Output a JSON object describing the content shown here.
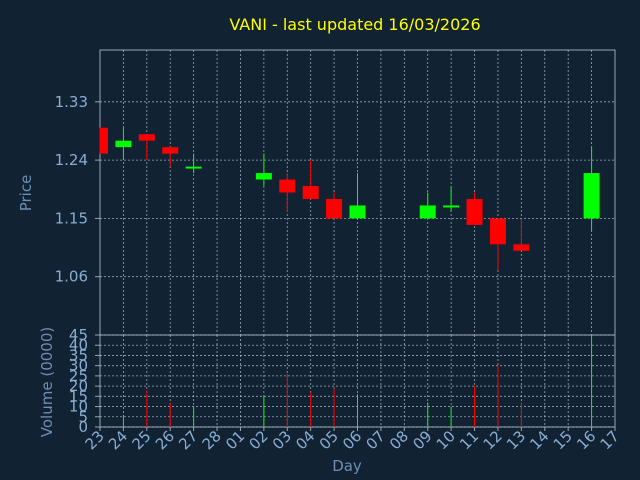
{
  "chart_data": [
    {
      "type": "candlestick",
      "title": "VANI - last updated 16/03/2026",
      "ylabel": "Price",
      "ylim": [
        0.97,
        1.41
      ],
      "y_ticks": [
        "1.06",
        "1.15",
        "1.24",
        "1.33"
      ],
      "y_tick_values": [
        1.06,
        1.15,
        1.24,
        1.33
      ],
      "grid": true,
      "colors": {
        "up": "#00ff00",
        "down": "#ff0000",
        "background": "#112233",
        "title": "#ffff00",
        "label": "#6e8fb2"
      },
      "candles": [
        {
          "day": "23",
          "open": 1.29,
          "high": 1.29,
          "low": 1.25,
          "close": 1.25
        },
        {
          "day": "24",
          "open": 1.26,
          "high": 1.29,
          "low": 1.24,
          "close": 1.27
        },
        {
          "day": "25",
          "open": 1.28,
          "high": 1.28,
          "low": 1.24,
          "close": 1.27
        },
        {
          "day": "26",
          "open": 1.26,
          "high": 1.26,
          "low": 1.23,
          "close": 1.25
        },
        {
          "day": "27",
          "open": 1.23,
          "high": 1.25,
          "low": 1.22,
          "close": 1.23
        },
        {
          "day": "02",
          "open": 1.21,
          "high": 1.25,
          "low": 1.2,
          "close": 1.22
        },
        {
          "day": "03",
          "open": 1.21,
          "high": 1.22,
          "low": 1.16,
          "close": 1.19
        },
        {
          "day": "04",
          "open": 1.2,
          "high": 1.24,
          "low": 1.18,
          "close": 1.18
        },
        {
          "day": "05",
          "open": 1.18,
          "high": 1.19,
          "low": 1.15,
          "close": 1.15
        },
        {
          "day": "06",
          "open": 1.15,
          "high": 1.22,
          "low": 1.15,
          "close": 1.17
        },
        {
          "day": "09",
          "open": 1.15,
          "high": 1.19,
          "low": 1.15,
          "close": 1.17
        },
        {
          "day": "10",
          "open": 1.17,
          "high": 1.2,
          "low": 1.16,
          "close": 1.17
        },
        {
          "day": "11",
          "open": 1.18,
          "high": 1.19,
          "low": 1.14,
          "close": 1.14
        },
        {
          "day": "12",
          "open": 1.15,
          "high": 1.15,
          "low": 1.07,
          "close": 1.11
        },
        {
          "day": "13",
          "open": 1.11,
          "high": 1.15,
          "low": 1.1,
          "close": 1.1
        },
        {
          "day": "16",
          "open": 1.15,
          "high": 1.26,
          "low": 1.13,
          "close": 1.22
        }
      ]
    },
    {
      "type": "bar",
      "ylabel": "Volume (0000)",
      "xlabel": "Day",
      "ylim": [
        0,
        45
      ],
      "y_ticks": [
        "0",
        "5",
        "10",
        "15",
        "20",
        "25",
        "30",
        "35",
        "40",
        "45"
      ],
      "y_tick_values": [
        0,
        5,
        10,
        15,
        20,
        25,
        30,
        35,
        40,
        45
      ],
      "categories": [
        "23",
        "24",
        "25",
        "26",
        "27",
        "28",
        "01",
        "02",
        "03",
        "04",
        "05",
        "06",
        "07",
        "08",
        "09",
        "10",
        "11",
        "12",
        "13",
        "14",
        "15",
        "16",
        "17"
      ],
      "values": [
        0,
        6,
        18,
        12,
        10,
        0,
        0,
        15,
        26,
        17,
        19,
        16,
        0,
        0,
        12,
        10,
        20,
        30,
        12,
        0,
        0,
        44,
        0
      ],
      "bar_colors": [
        "",
        "#00ff00",
        "#ff0000",
        "#ff0000",
        "#00ff00",
        "",
        "",
        "#00ff00",
        "#ff0000",
        "#ff0000",
        "#ff0000",
        "#00ff00",
        "",
        "",
        "#00ff00",
        "#00ff00",
        "#ff0000",
        "#ff0000",
        "#ff0000",
        "",
        "",
        "#00ff00",
        ""
      ],
      "grid": true
    }
  ]
}
